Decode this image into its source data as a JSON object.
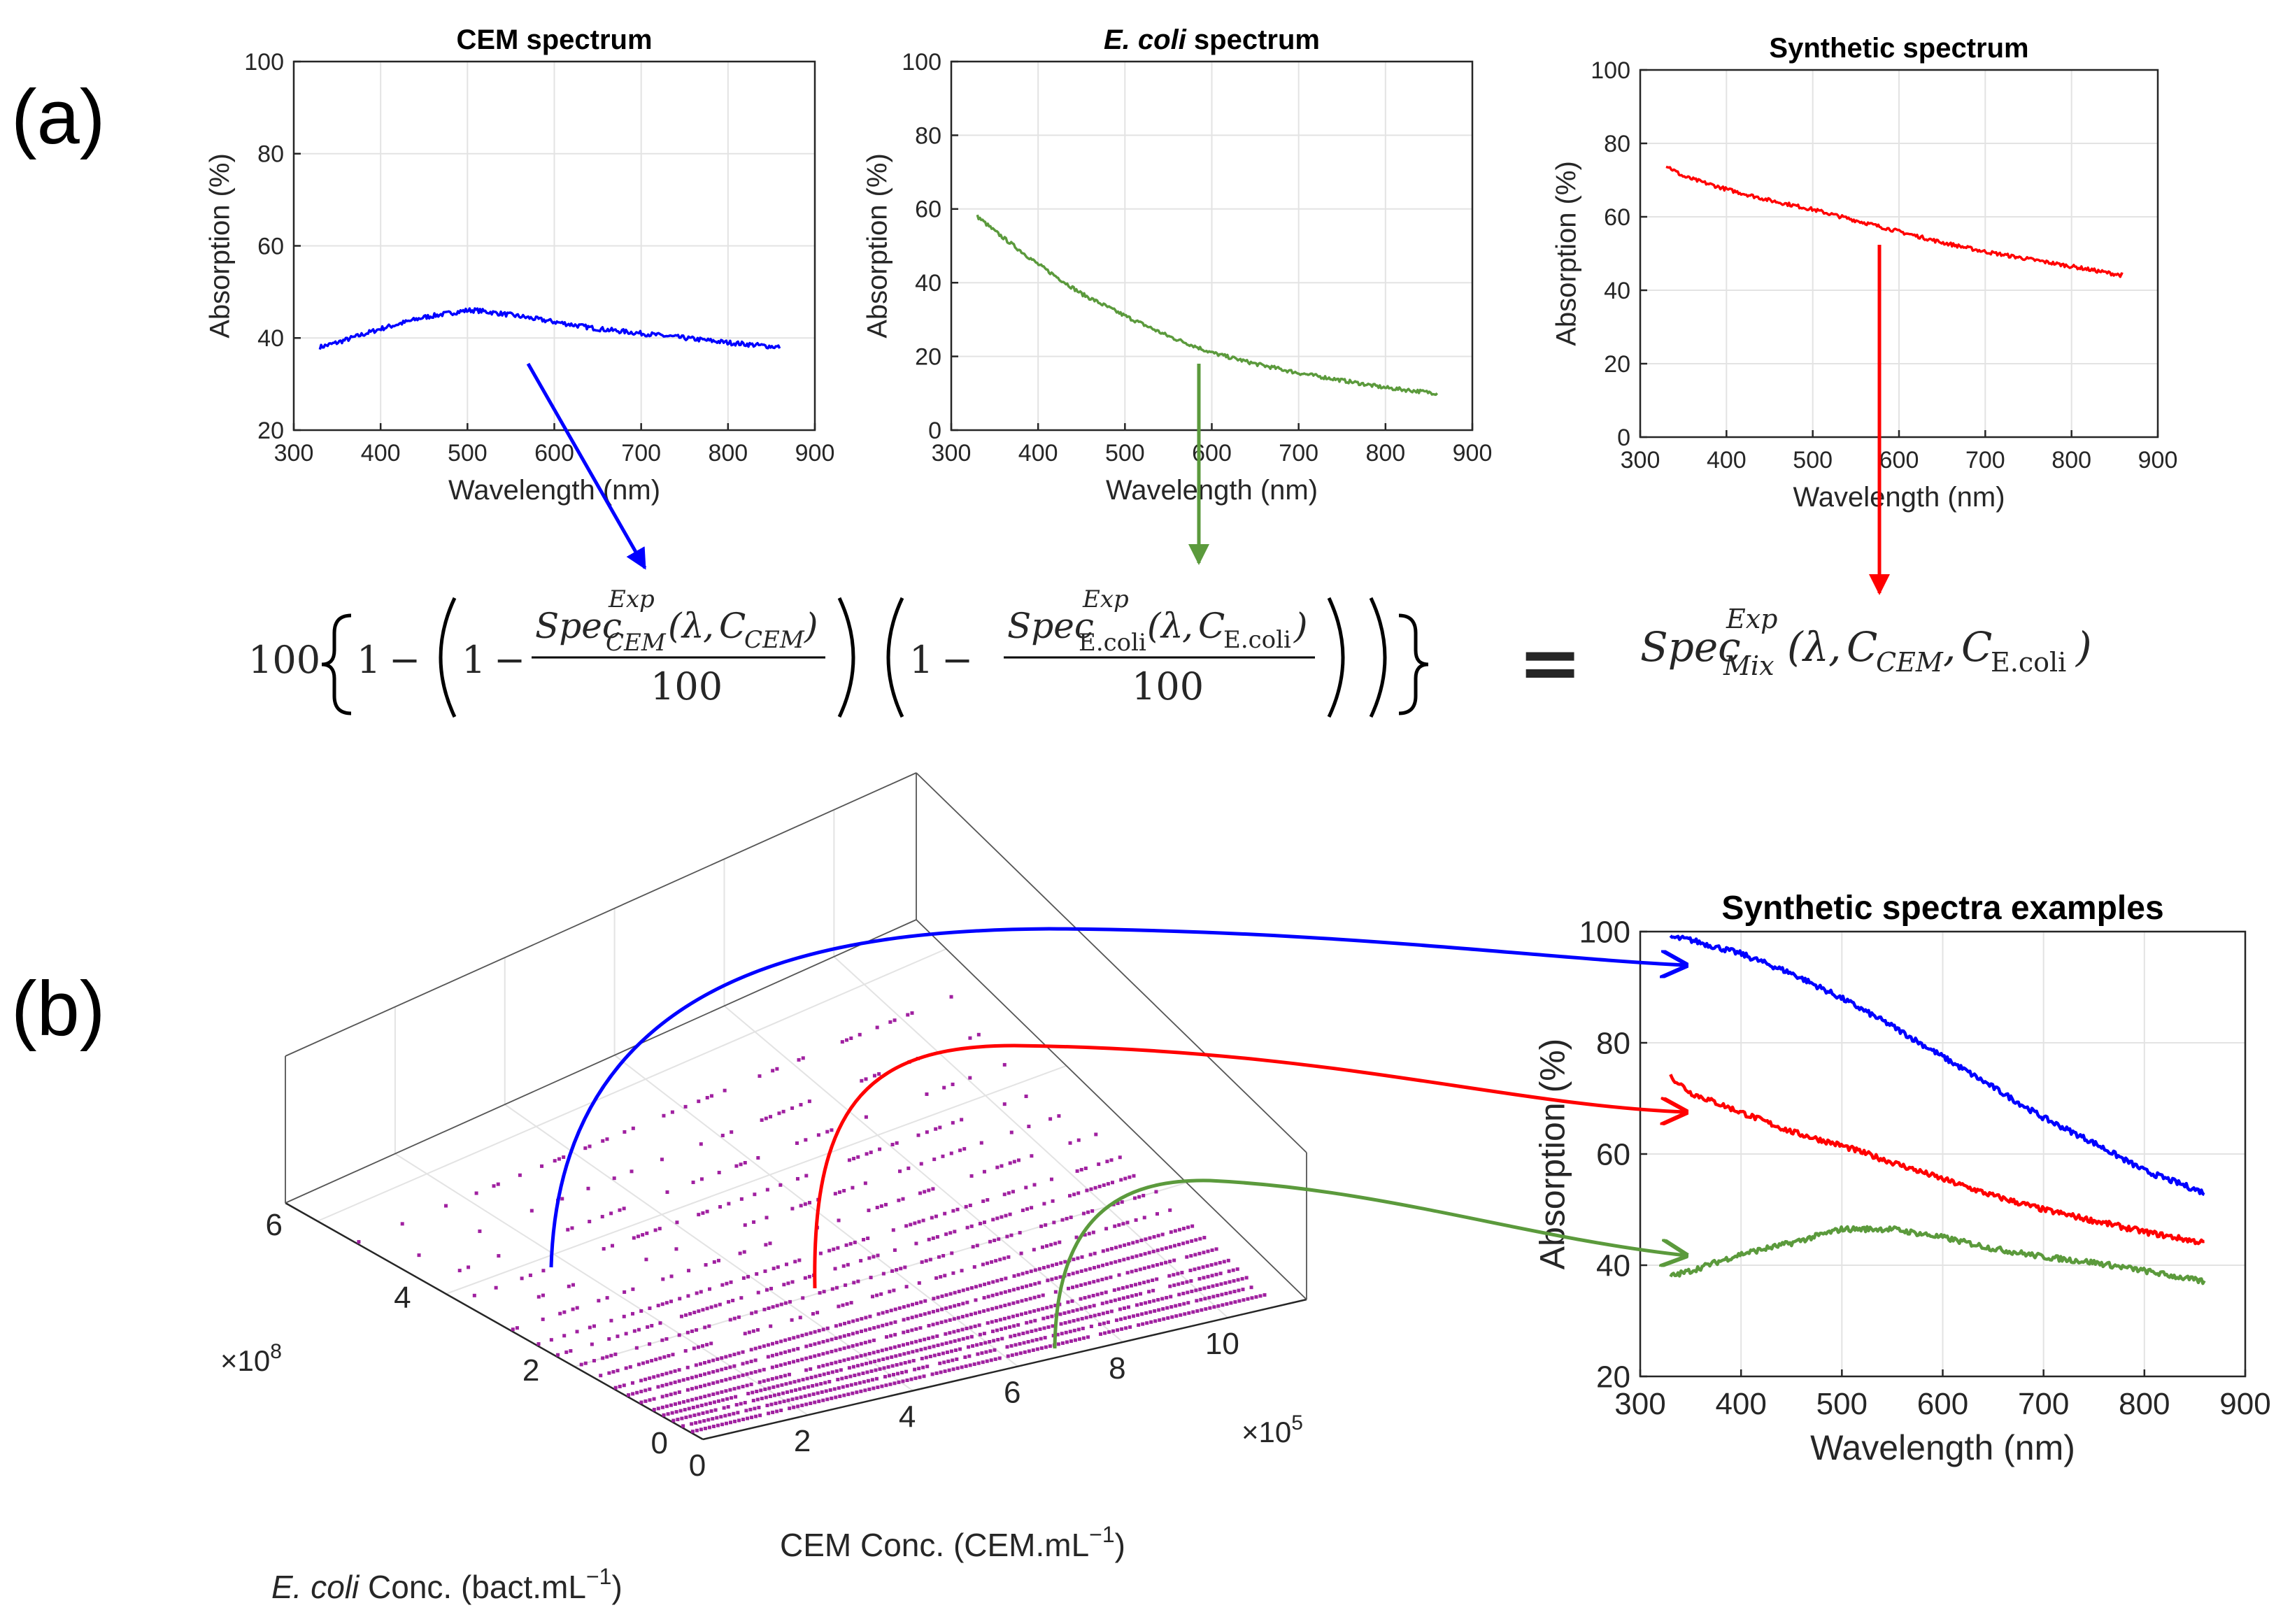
{
  "panel_labels": {
    "a": "(a)",
    "b": "(b)"
  },
  "colors": {
    "cem": "#0000ff",
    "ecoli": "#5b9a3c",
    "mix": "#ff0000",
    "scatter": "#a020a0",
    "axis": "#262626",
    "grid": "#e3e3e3"
  },
  "equation": {
    "hundred": "100",
    "one": "1",
    "minus": "−",
    "spec": "Spec",
    "exp": "Exp",
    "sub_cem": "CEM",
    "sub_ecoli": "E.coli",
    "sub_mix": "Mix",
    "lambda": "λ",
    "c": "C",
    "comma": ",",
    "lparen": "(",
    "rparen": ")",
    "equals": "="
  },
  "chart_data": [
    {
      "id": "cem",
      "type": "line",
      "title": "CEM spectrum",
      "xlabel": "Wavelength (nm)",
      "ylabel": "Absorption (%)",
      "xlim": [
        300,
        900
      ],
      "ylim": [
        20,
        100
      ],
      "xticks": [
        300,
        400,
        500,
        600,
        700,
        800,
        900
      ],
      "yticks": [
        20,
        40,
        60,
        80,
        100
      ],
      "grid": true,
      "series": [
        {
          "color": "#0000ff",
          "x": [
            330,
            350,
            400,
            450,
            500,
            510,
            550,
            600,
            650,
            700,
            750,
            800,
            860
          ],
          "y": [
            38,
            39,
            42,
            44.5,
            46,
            46,
            45,
            43.5,
            42,
            41,
            40,
            39,
            38
          ]
        }
      ]
    },
    {
      "id": "ecoli",
      "type": "line",
      "title": "E. coli spectrum",
      "title_italic": "E. coli",
      "title_rest": " spectrum",
      "xlabel": "Wavelength (nm)",
      "ylabel": "Absorption (%)",
      "xlim": [
        300,
        900
      ],
      "ylim": [
        0,
        100
      ],
      "xticks": [
        300,
        400,
        500,
        600,
        700,
        800,
        900
      ],
      "yticks": [
        0,
        20,
        40,
        60,
        80,
        100
      ],
      "grid": true,
      "series": [
        {
          "color": "#5b9a3c",
          "x": [
            330,
            350,
            400,
            450,
            500,
            550,
            600,
            650,
            700,
            750,
            800,
            860
          ],
          "y": [
            58,
            54,
            45,
            37,
            31,
            25.5,
            21,
            18,
            15.5,
            13.5,
            11.5,
            10
          ]
        }
      ]
    },
    {
      "id": "mix",
      "type": "line",
      "title": "Synthetic spectrum",
      "xlabel": "Wavelength (nm)",
      "ylabel": "Absorption (%)",
      "xlim": [
        300,
        900
      ],
      "ylim": [
        0,
        100
      ],
      "xticks": [
        300,
        400,
        500,
        600,
        700,
        800,
        900
      ],
      "yticks": [
        0,
        20,
        40,
        60,
        80,
        100
      ],
      "grid": true,
      "series": [
        {
          "color": "#ff0000",
          "x": [
            330,
            350,
            400,
            450,
            500,
            550,
            600,
            650,
            700,
            750,
            800,
            860
          ],
          "y": [
            74,
            71,
            67.5,
            64.5,
            62,
            59,
            56,
            53,
            50.5,
            48.5,
            46.5,
            44
          ]
        }
      ]
    },
    {
      "id": "examples",
      "type": "line",
      "title": "Synthetic spectra examples",
      "xlabel": "Wavelength (nm)",
      "ylabel": "Absorption (%)",
      "xlim": [
        300,
        900
      ],
      "ylim": [
        20,
        100
      ],
      "xticks": [
        300,
        400,
        500,
        600,
        700,
        800,
        900
      ],
      "yticks": [
        20,
        40,
        60,
        80,
        100
      ],
      "grid": true,
      "series": [
        {
          "color": "#0000ff",
          "x": [
            330,
            350,
            400,
            450,
            500,
            550,
            600,
            650,
            700,
            750,
            800,
            860
          ],
          "y": [
            99,
            98.5,
            96,
            92.5,
            88,
            83,
            77.5,
            72,
            66.5,
            62,
            57,
            53
          ]
        },
        {
          "color": "#ff0000",
          "x": [
            330,
            350,
            400,
            450,
            500,
            550,
            600,
            650,
            700,
            750,
            800,
            860
          ],
          "y": [
            74,
            71,
            67.5,
            64,
            61.5,
            58.5,
            55.5,
            52.5,
            50,
            48,
            46,
            44
          ]
        },
        {
          "color": "#5b9a3c",
          "x": [
            330,
            350,
            400,
            450,
            500,
            550,
            600,
            650,
            700,
            750,
            800,
            860
          ],
          "y": [
            38,
            39,
            42,
            44,
            46.5,
            46.5,
            45,
            43,
            41.5,
            40.5,
            39,
            37
          ]
        }
      ]
    },
    {
      "id": "scatter3d",
      "type": "scatter",
      "xlabel": "CEM Conc. (CEM.mL",
      "xlabel_sup": "−1",
      "xlabel_close": ")",
      "ylabel_italic": "E. coli",
      "ylabel": " Conc. (bact.mL",
      "ylabel_sup": "−1",
      "ylabel_close": ")",
      "x_multiplier": "×10",
      "x_multiplier_exp": "5",
      "y_multiplier": "×10",
      "y_multiplier_exp": "8",
      "xticks": [
        0,
        2,
        4,
        6,
        8,
        10
      ],
      "yticks": [
        0,
        2,
        4,
        6
      ],
      "xlim": [
        0,
        11.5
      ],
      "ylim": [
        0,
        6.5
      ],
      "grid": true,
      "color": "#a020a0",
      "y_levels": [
        0.2,
        0.35,
        0.5,
        0.65,
        0.8,
        1.0,
        1.2,
        1.4,
        1.7,
        2.0,
        2.3,
        2.6,
        3.0,
        3.4,
        3.8,
        4.3,
        4.8,
        5.4
      ],
      "x_range": [
        0,
        11
      ]
    }
  ]
}
